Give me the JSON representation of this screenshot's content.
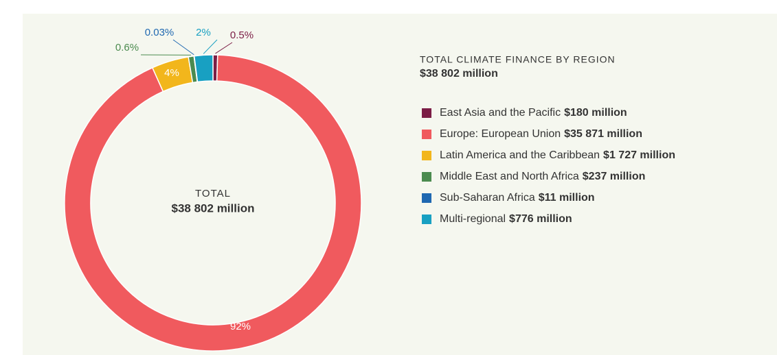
{
  "chart_data": {
    "type": "donut",
    "center_label": "TOTAL",
    "center_value": "$38 802 million",
    "legend_title": "TOTAL CLIMATE FINANCE BY REGION",
    "legend_total": "$38 802 million",
    "series": [
      {
        "name": "East Asia and the Pacific",
        "amount": "$180 million",
        "color": "#7b1d45"
      },
      {
        "name": "Europe: European Union",
        "amount": "$35 871 million",
        "color": "#f05a5e"
      },
      {
        "name": "Latin America and the Caribbean",
        "amount": "$1 727 million",
        "color": "#f2b61c"
      },
      {
        "name": "Middle East and North Africa",
        "amount": "$237 million",
        "color": "#4b8b4f"
      },
      {
        "name": "Sub-Saharan Africa",
        "amount": "$11 million",
        "color": "#1f68b1"
      },
      {
        "name": "Multi-regional",
        "amount": "$776 million",
        "color": "#18a0c2"
      }
    ],
    "values": [
      0.5,
      92,
      4,
      0.6,
      0.03,
      2
    ],
    "value_labels": [
      "0.5%",
      "92%",
      "4%",
      "0.6%",
      "0.03%",
      "2%"
    ]
  }
}
